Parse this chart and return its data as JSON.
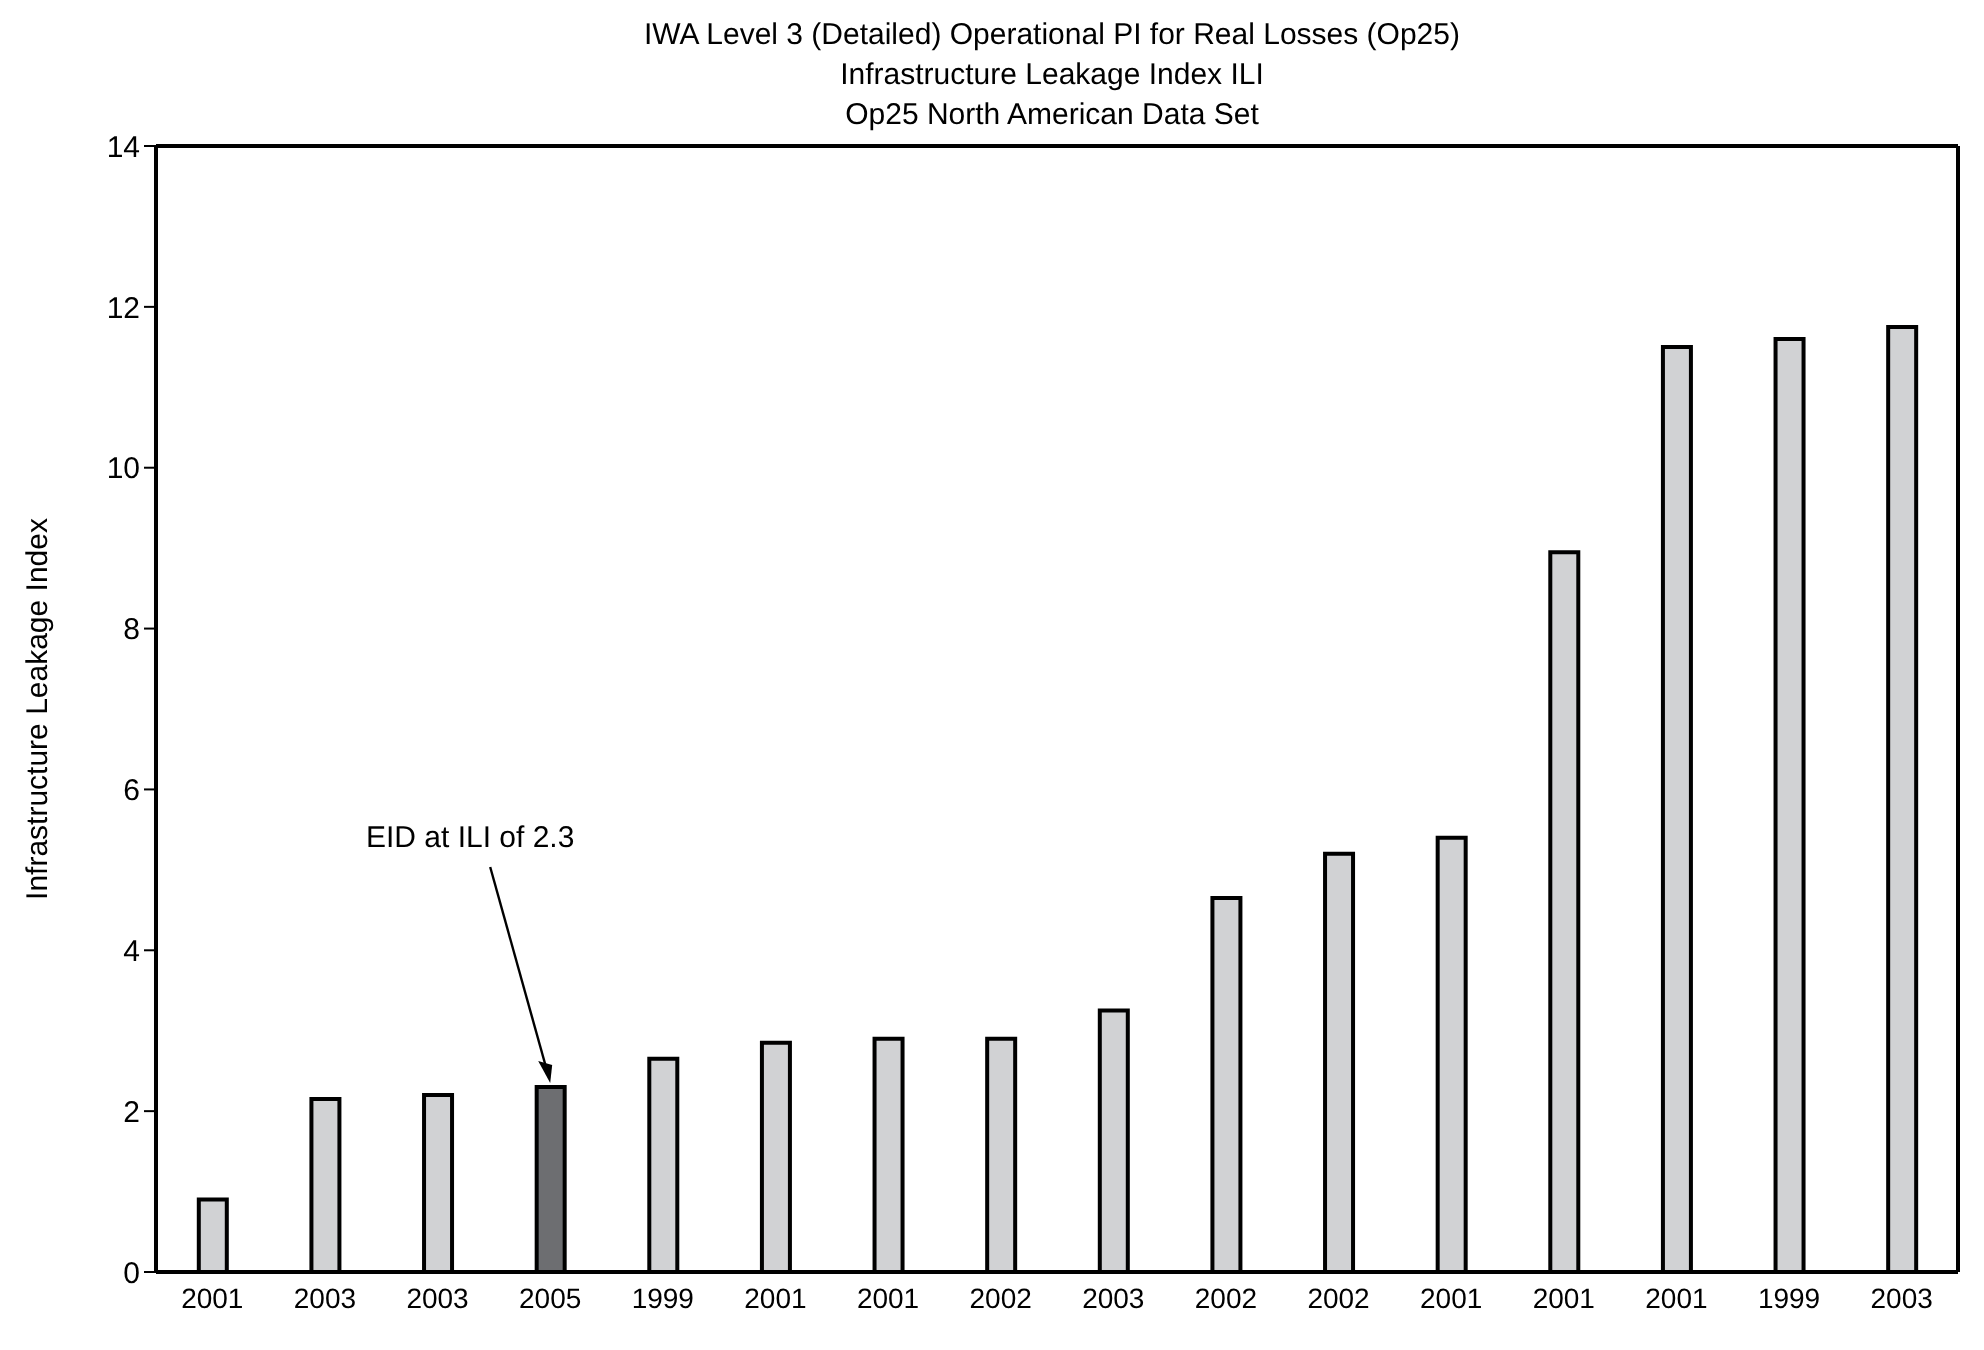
{
  "chart_data": {
    "type": "bar",
    "title": "IWA Level 3 (Detailed) Operational PI for Real Losses (Op25)\nInfrastructure Leakage Index ILI\nOp25 North American Data Set",
    "ylabel": "Infrastructure Leakage Index",
    "categories": [
      "2001",
      "2003",
      "2003",
      "2005",
      "1999",
      "2001",
      "2001",
      "2002",
      "2003",
      "2002",
      "2002",
      "2001",
      "2001",
      "2001",
      "1999",
      "2003"
    ],
    "values": [
      0.9,
      2.15,
      2.2,
      2.3,
      2.65,
      2.85,
      2.9,
      2.9,
      3.25,
      4.65,
      5.2,
      5.4,
      8.95,
      11.5,
      11.6,
      11.75
    ],
    "colors": [
      "#d1d2d4",
      "#d1d2d4",
      "#d1d2d4",
      "#6d6e71",
      "#d1d2d4",
      "#d1d2d4",
      "#d1d2d4",
      "#d1d2d4",
      "#d1d2d4",
      "#d1d2d4",
      "#d1d2d4",
      "#d1d2d4",
      "#d1d2d4",
      "#d1d2d4",
      "#d1d2d4",
      "#d1d2d4"
    ],
    "ylim": [
      0,
      14
    ],
    "yticks": [
      0,
      2,
      4,
      6,
      8,
      10,
      12,
      14
    ],
    "grid": false,
    "legend": false,
    "annotations": [
      {
        "text": "EID at ILI of 2.3",
        "x": "2005",
        "y": 2.3
      }
    ]
  }
}
